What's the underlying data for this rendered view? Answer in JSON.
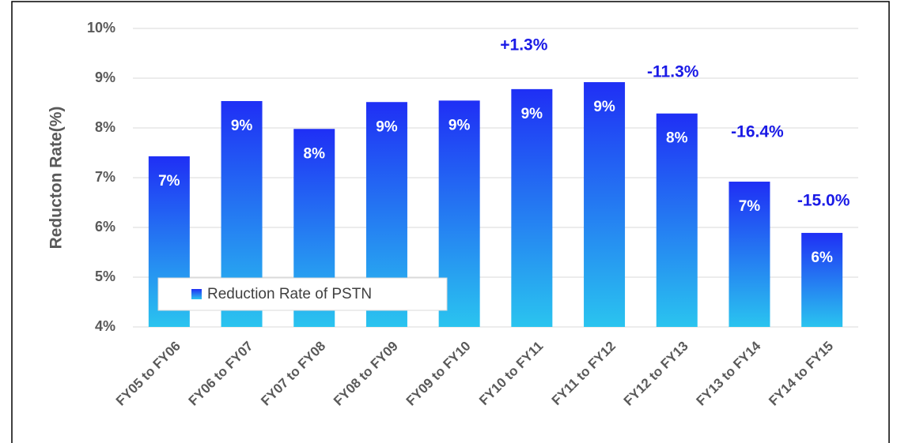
{
  "chart_data": {
    "type": "bar",
    "y_label": "Reducton Rate(%)",
    "categories": [
      "FY05 to FY06",
      "FY06 to FY07",
      "FY07 to FY08",
      "FY08 to FY09",
      "FY09 to FY10",
      "FY10 to FY11",
      "FY11 to FY12",
      "FY12 to FY13",
      "FY13 to FY14",
      "FY14 to FY15"
    ],
    "series": [
      {
        "name": "Reduction Rate of PSTN",
        "color": "#1f2ff5",
        "values": [
          7.43,
          8.54,
          7.98,
          8.52,
          8.55,
          8.78,
          8.92,
          8.29,
          6.92,
          5.89
        ],
        "value_labels": [
          "7%",
          "9%",
          "8%",
          "9%",
          "9%",
          "9%",
          "9%",
          "8%",
          "7%",
          "6%"
        ]
      }
    ],
    "annotations": [
      "+1.3%",
      "-11.3%",
      "-16.4%",
      "-15.0%"
    ],
    "ylim": [
      4,
      10
    ],
    "yticks": [
      {
        "value": 4,
        "label": "4%"
      },
      {
        "value": 5,
        "label": "5%"
      },
      {
        "value": 6,
        "label": "6%"
      },
      {
        "value": 7,
        "label": "7%"
      },
      {
        "value": 8,
        "label": "8%"
      },
      {
        "value": 9,
        "label": "9%"
      },
      {
        "value": 10,
        "label": "10%"
      }
    ],
    "grid": true,
    "legend": "lower left"
  }
}
